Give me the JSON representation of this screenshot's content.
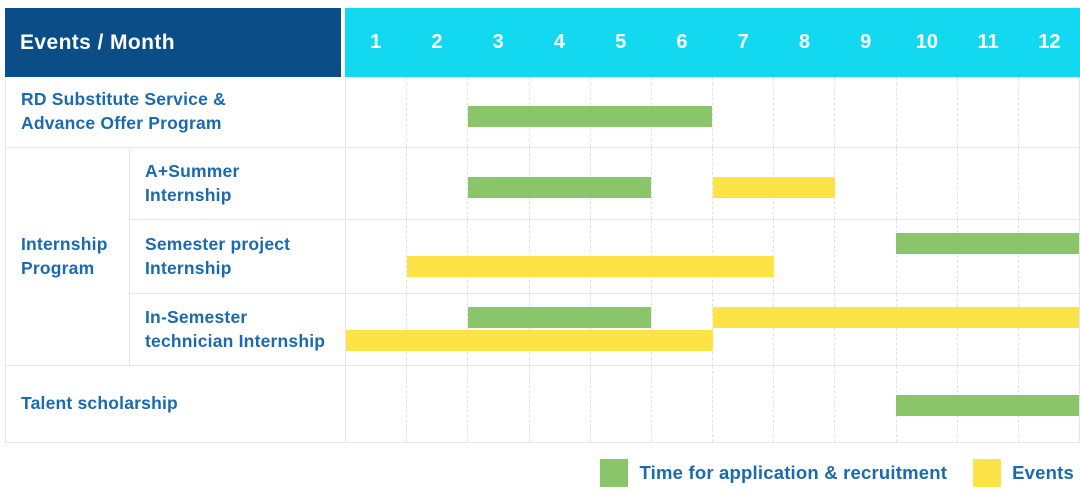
{
  "colors": {
    "header_navy": "#0b4e87",
    "header_cyan": "#12d9ef",
    "recruitment": "#8bc56a",
    "events": "#fde345",
    "label_blue": "#1b69ae"
  },
  "table": {
    "corner_label": "Events / Month",
    "months": [
      "1",
      "2",
      "3",
      "4",
      "5",
      "6",
      "7",
      "8",
      "9",
      "10",
      "11",
      "12"
    ],
    "group_label": "Internship\nProgram",
    "rows": [
      {
        "label": "RD Substitute Service &\nAdvance Offer Program",
        "lines": 1,
        "bars": [
          {
            "type": "recruitment",
            "start": 3,
            "end": 6,
            "line": 0
          }
        ]
      },
      {
        "label": "A+Summer\nInternship",
        "lines": 1,
        "bars": [
          {
            "type": "recruitment",
            "start": 3,
            "end": 5,
            "line": 0
          },
          {
            "type": "events",
            "start": 7,
            "end": 8,
            "line": 0
          }
        ]
      },
      {
        "label": "Semester project\nInternship",
        "lines": 2,
        "bars": [
          {
            "type": "recruitment",
            "start": 10,
            "end": 12,
            "line": 0
          },
          {
            "type": "events",
            "start": 2,
            "end": 7,
            "line": 1
          }
        ]
      },
      {
        "label": "In-Semester\ntechnician Internship",
        "lines": 2,
        "bars": [
          {
            "type": "recruitment",
            "start": 3,
            "end": 5,
            "line": 0
          },
          {
            "type": "events",
            "start": 7,
            "end": 12,
            "line": 0
          },
          {
            "type": "events",
            "start": 1,
            "end": 6,
            "line": 1
          }
        ]
      },
      {
        "label": "Talent scholarship",
        "lines": 1,
        "bars": [
          {
            "type": "recruitment",
            "start": 10,
            "end": 12,
            "line": 0
          }
        ]
      }
    ]
  },
  "legend": {
    "recruitment_label": "Time for application & recruitment",
    "events_label": "Events"
  },
  "chart_data": {
    "type": "table",
    "subtype": "gantt",
    "title": "Events / Month",
    "x_axis": {
      "label": "Month",
      "ticks": [
        1,
        2,
        3,
        4,
        5,
        6,
        7,
        8,
        9,
        10,
        11,
        12
      ],
      "range": [
        1,
        12
      ]
    },
    "legend_entries": [
      {
        "name": "Time for application & recruitment",
        "color": "#8bc56a"
      },
      {
        "name": "Events",
        "color": "#fde345"
      }
    ],
    "rows": [
      {
        "event": "RD Substitute Service & Advance Offer Program",
        "group": null,
        "spans": [
          {
            "series": "Time for application & recruitment",
            "start_month": 3,
            "end_month": 6
          }
        ]
      },
      {
        "event": "A+Summer Internship",
        "group": "Internship Program",
        "spans": [
          {
            "series": "Time for application & recruitment",
            "start_month": 3,
            "end_month": 5
          },
          {
            "series": "Events",
            "start_month": 7,
            "end_month": 8
          }
        ]
      },
      {
        "event": "Semester project Internship",
        "group": "Internship Program",
        "spans": [
          {
            "series": "Time for application & recruitment",
            "start_month": 10,
            "end_month": 12
          },
          {
            "series": "Events",
            "start_month": 2,
            "end_month": 7
          }
        ]
      },
      {
        "event": "In-Semester technician Internship",
        "group": "Internship Program",
        "spans": [
          {
            "series": "Time for application & recruitment",
            "start_month": 3,
            "end_month": 5
          },
          {
            "series": "Events",
            "start_month": 7,
            "end_month": 12
          },
          {
            "series": "Events",
            "start_month": 1,
            "end_month": 6
          }
        ]
      },
      {
        "event": "Talent scholarship",
        "group": null,
        "spans": [
          {
            "series": "Time for application & recruitment",
            "start_month": 10,
            "end_month": 12
          }
        ]
      }
    ],
    "grid": "dashed vertical month separators",
    "legend_position": "bottom-right"
  }
}
